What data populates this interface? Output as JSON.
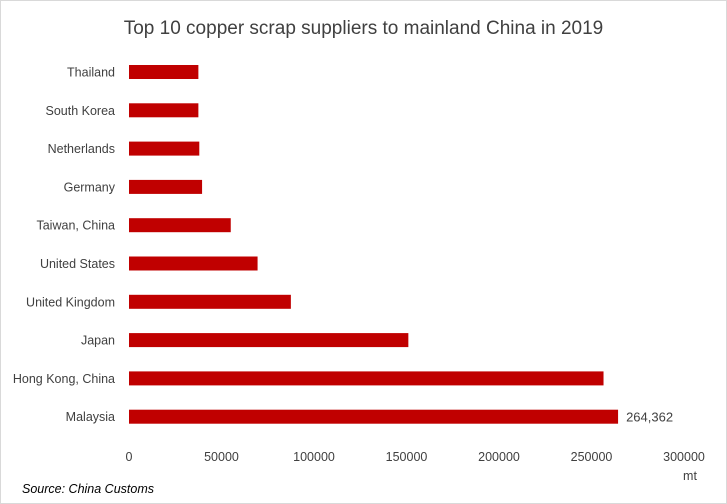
{
  "chart_data": {
    "type": "bar",
    "orientation": "horizontal",
    "title": "Top 10 copper scrap suppliers to mainland China in 2019",
    "xlabel": "mt",
    "ylabel": "",
    "xlim": [
      0,
      300000
    ],
    "xticks": [
      "0",
      "50000",
      "100000",
      "150000",
      "200000",
      "250000",
      "300000"
    ],
    "categories": [
      "Thailand",
      "South Korea",
      "Netherlands",
      "Germany",
      "Taiwan, China",
      "United States",
      "United Kingdom",
      "Japan",
      "Hong Kong, China",
      "Malaysia"
    ],
    "values": [
      37500,
      37500,
      38000,
      39500,
      55000,
      69500,
      87500,
      151000,
      256500,
      264362
    ],
    "data_labels": [
      {
        "category": "Malaysia",
        "text": "264,362"
      }
    ],
    "bar_color": "#c00000",
    "grid": false,
    "legend": "none"
  },
  "source": "Source: China Customs"
}
